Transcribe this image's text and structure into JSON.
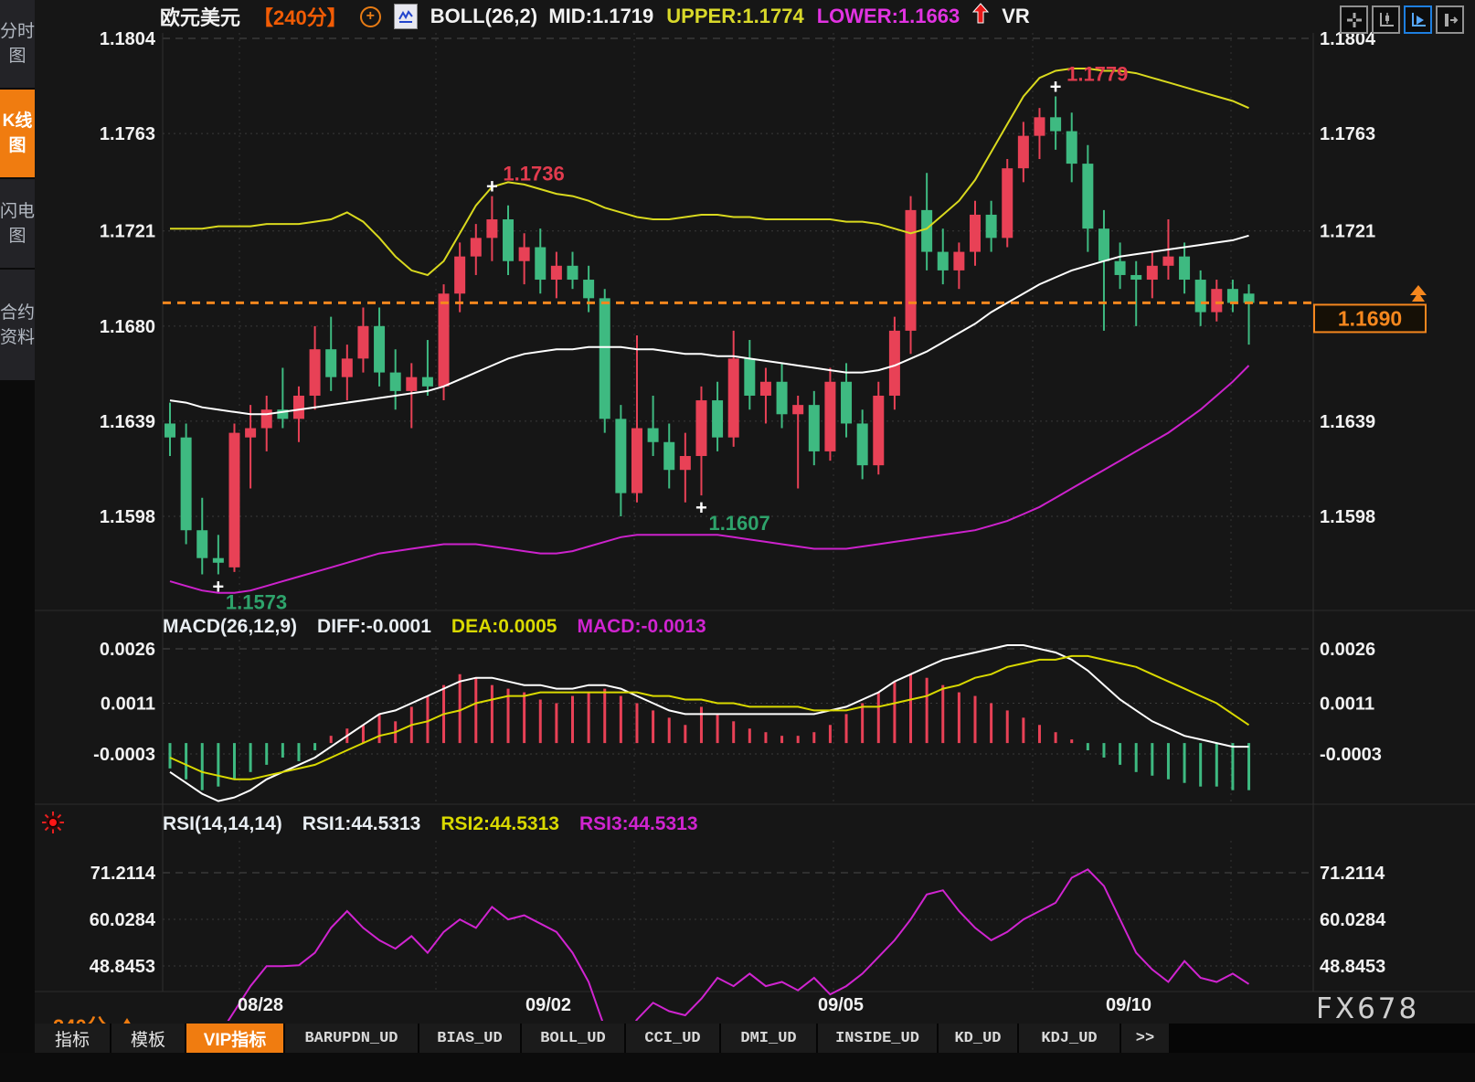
{
  "colors": {
    "up": "#e84156",
    "down": "#3eba81",
    "boll_upper": "#d9d91e",
    "boll_mid": "#ffffff",
    "boll_lower": "#cc22cc",
    "price_line": "#f5871e",
    "accent": "#f07c10",
    "grid": "#3a3a3a",
    "axis_text": "#f2f2f2",
    "ann_red": "#e23b4e",
    "ann_green": "#2ea36b",
    "macd_diff": "#ffffff",
    "macd_dea": "#d9d900",
    "rsi_line": "#d024d0"
  },
  "sidebar": {
    "items": [
      {
        "label": "分时图",
        "active": false
      },
      {
        "label": "K线图",
        "active": true
      },
      {
        "label": "闪电图",
        "active": false
      },
      {
        "label": "合约资料",
        "active": false
      }
    ]
  },
  "header": {
    "symbol": "欧元美元",
    "period": "【240分】",
    "plus_icon": "+",
    "boll_label": "BOLL(26,2)",
    "mid": "MID:1.1719",
    "upper": "UPPER:1.1774",
    "lower": "LOWER:1.1663",
    "vr": "VR"
  },
  "toolbar": {
    "buttons": [
      "pan-crosshair",
      "axis-candle",
      "axis-play",
      "axis-export"
    ],
    "active_index": 2
  },
  "macd_header": {
    "label": "MACD(26,12,9)",
    "diff": "DIFF:-0.0001",
    "dea": "DEA:0.0005",
    "macd": "MACD:-0.0013"
  },
  "rsi_header": {
    "label": "RSI(14,14,14)",
    "rsi1": "RSI1:44.5313",
    "rsi2": "RSI2:44.5313",
    "rsi3": "RSI3:44.5313"
  },
  "footer": {
    "interval": "240分",
    "watermark": "FX678",
    "tabs": [
      "指标",
      "模板",
      "VIP指标",
      "BARUPDN_UD",
      "BIAS_UD",
      "BOLL_UD",
      "CCI_UD",
      "DMI_UD",
      "INSIDE_UD",
      "KD_UD",
      "KDJ_UD",
      ">>"
    ],
    "active_tab": "VIP指标"
  },
  "chart_data": {
    "type": "candlestick",
    "title": "欧元美元 240分",
    "x_labels": [
      "08/28",
      "09/02",
      "09/05",
      "09/10"
    ],
    "price_axis_ticks": [
      1.1804,
      1.1763,
      1.1721,
      1.168,
      1.1639,
      1.1598
    ],
    "macd_axis_ticks": [
      0.0026,
      0.0011,
      -0.0003
    ],
    "rsi_axis_ticks": [
      71.2114,
      60.0284,
      48.8453
    ],
    "current_price": "1.1690",
    "current_price_value": 1.169,
    "candles": [
      [
        1.1638,
        1.1647,
        1.1624,
        1.1632
      ],
      [
        1.1632,
        1.1638,
        1.1586,
        1.1592
      ],
      [
        1.1592,
        1.1606,
        1.1573,
        1.158
      ],
      [
        1.158,
        1.159,
        1.1573,
        1.1578
      ],
      [
        1.1576,
        1.1638,
        1.1574,
        1.1634
      ],
      [
        1.1632,
        1.1646,
        1.161,
        1.1636
      ],
      [
        1.1636,
        1.165,
        1.1626,
        1.1644
      ],
      [
        1.1644,
        1.1662,
        1.1636,
        1.164
      ],
      [
        1.164,
        1.1654,
        1.163,
        1.165
      ],
      [
        1.165,
        1.168,
        1.1644,
        1.167
      ],
      [
        1.167,
        1.1684,
        1.1652,
        1.1658
      ],
      [
        1.1658,
        1.1672,
        1.1648,
        1.1666
      ],
      [
        1.1666,
        1.1688,
        1.166,
        1.168
      ],
      [
        1.168,
        1.1688,
        1.1654,
        1.166
      ],
      [
        1.166,
        1.167,
        1.1644,
        1.1652
      ],
      [
        1.1652,
        1.1664,
        1.1636,
        1.1658
      ],
      [
        1.1658,
        1.1674,
        1.165,
        1.1654
      ],
      [
        1.1654,
        1.1698,
        1.1648,
        1.1694
      ],
      [
        1.1694,
        1.1716,
        1.1686,
        1.171
      ],
      [
        1.171,
        1.1724,
        1.1702,
        1.1718
      ],
      [
        1.1718,
        1.1736,
        1.1708,
        1.1726
      ],
      [
        1.1726,
        1.1732,
        1.1702,
        1.1708
      ],
      [
        1.1708,
        1.172,
        1.1698,
        1.1714
      ],
      [
        1.1714,
        1.1722,
        1.1694,
        1.17
      ],
      [
        1.17,
        1.1712,
        1.1692,
        1.1706
      ],
      [
        1.1706,
        1.1712,
        1.1696,
        1.17
      ],
      [
        1.17,
        1.1706,
        1.1686,
        1.1692
      ],
      [
        1.1692,
        1.1696,
        1.1634,
        1.164
      ],
      [
        1.164,
        1.1646,
        1.1598,
        1.1608
      ],
      [
        1.1608,
        1.1676,
        1.1604,
        1.1636
      ],
      [
        1.1636,
        1.165,
        1.1624,
        1.163
      ],
      [
        1.163,
        1.1638,
        1.161,
        1.1618
      ],
      [
        1.1618,
        1.1634,
        1.1604,
        1.1624
      ],
      [
        1.1624,
        1.1654,
        1.1607,
        1.1648
      ],
      [
        1.1648,
        1.1656,
        1.1626,
        1.1632
      ],
      [
        1.1632,
        1.1678,
        1.1628,
        1.1666
      ],
      [
        1.1666,
        1.1674,
        1.1644,
        1.165
      ],
      [
        1.165,
        1.1662,
        1.1638,
        1.1656
      ],
      [
        1.1656,
        1.1664,
        1.1636,
        1.1642
      ],
      [
        1.1642,
        1.165,
        1.161,
        1.1646
      ],
      [
        1.1646,
        1.1652,
        1.162,
        1.1626
      ],
      [
        1.1626,
        1.1662,
        1.1622,
        1.1656
      ],
      [
        1.1656,
        1.1664,
        1.1632,
        1.1638
      ],
      [
        1.1638,
        1.1644,
        1.1614,
        1.162
      ],
      [
        1.162,
        1.1656,
        1.1616,
        1.165
      ],
      [
        1.165,
        1.1684,
        1.1644,
        1.1678
      ],
      [
        1.1678,
        1.1736,
        1.1668,
        1.173
      ],
      [
        1.173,
        1.1746,
        1.1704,
        1.1712
      ],
      [
        1.1712,
        1.1722,
        1.1698,
        1.1704
      ],
      [
        1.1704,
        1.1716,
        1.1696,
        1.1712
      ],
      [
        1.1712,
        1.1734,
        1.1706,
        1.1728
      ],
      [
        1.1728,
        1.1734,
        1.1712,
        1.1718
      ],
      [
        1.1718,
        1.1752,
        1.1714,
        1.1748
      ],
      [
        1.1748,
        1.1768,
        1.1742,
        1.1762
      ],
      [
        1.1762,
        1.1774,
        1.1752,
        1.177
      ],
      [
        1.177,
        1.1779,
        1.1756,
        1.1764
      ],
      [
        1.1764,
        1.1772,
        1.1742,
        1.175
      ],
      [
        1.175,
        1.1758,
        1.1712,
        1.1722
      ],
      [
        1.1722,
        1.173,
        1.1678,
        1.1708
      ],
      [
        1.1708,
        1.1716,
        1.1696,
        1.1702
      ],
      [
        1.1702,
        1.1708,
        1.168,
        1.17
      ],
      [
        1.17,
        1.1712,
        1.1692,
        1.1706
      ],
      [
        1.1706,
        1.1726,
        1.17,
        1.171
      ],
      [
        1.171,
        1.1716,
        1.1694,
        1.17
      ],
      [
        1.17,
        1.1704,
        1.168,
        1.1686
      ],
      [
        1.1686,
        1.17,
        1.1682,
        1.1696
      ],
      [
        1.1696,
        1.17,
        1.1686,
        1.169
      ],
      [
        1.1694,
        1.1698,
        1.1672,
        1.169
      ]
    ],
    "boll": {
      "upper": [
        1.1722,
        1.1722,
        1.1722,
        1.1723,
        1.1723,
        1.1723,
        1.1724,
        1.1724,
        1.1724,
        1.1725,
        1.1726,
        1.1729,
        1.1725,
        1.1718,
        1.171,
        1.1704,
        1.1702,
        1.1708,
        1.172,
        1.1732,
        1.174,
        1.1742,
        1.1741,
        1.1739,
        1.1737,
        1.1736,
        1.1734,
        1.1731,
        1.1729,
        1.1727,
        1.1726,
        1.1726,
        1.1727,
        1.1728,
        1.1728,
        1.1727,
        1.1727,
        1.1726,
        1.1726,
        1.1726,
        1.1726,
        1.1726,
        1.1725,
        1.1725,
        1.1724,
        1.1722,
        1.172,
        1.1722,
        1.1728,
        1.1734,
        1.1743,
        1.1755,
        1.1767,
        1.1779,
        1.1787,
        1.179,
        1.1791,
        1.1791,
        1.179,
        1.179,
        1.1789,
        1.1787,
        1.1785,
        1.1783,
        1.1781,
        1.1779,
        1.1777,
        1.1774
      ],
      "mid": [
        1.1648,
        1.1647,
        1.1645,
        1.1644,
        1.1643,
        1.1642,
        1.1642,
        1.1643,
        1.1644,
        1.1645,
        1.1646,
        1.1647,
        1.1648,
        1.1649,
        1.165,
        1.1651,
        1.1652,
        1.1654,
        1.1657,
        1.166,
        1.1663,
        1.1666,
        1.1668,
        1.1669,
        1.167,
        1.167,
        1.1671,
        1.1671,
        1.1671,
        1.167,
        1.167,
        1.1669,
        1.1668,
        1.1668,
        1.1667,
        1.1667,
        1.1666,
        1.1665,
        1.1664,
        1.1663,
        1.1662,
        1.1661,
        1.166,
        1.166,
        1.1661,
        1.1663,
        1.1666,
        1.1669,
        1.1673,
        1.1677,
        1.1681,
        1.1686,
        1.169,
        1.1694,
        1.1698,
        1.1701,
        1.1704,
        1.1706,
        1.1708,
        1.171,
        1.1711,
        1.1712,
        1.1713,
        1.1714,
        1.1715,
        1.1716,
        1.1717,
        1.1719
      ],
      "lower": [
        1.157,
        1.1568,
        1.1566,
        1.1565,
        1.1565,
        1.1566,
        1.1568,
        1.157,
        1.1572,
        1.1574,
        1.1576,
        1.1578,
        1.158,
        1.1582,
        1.1583,
        1.1584,
        1.1585,
        1.1586,
        1.1586,
        1.1586,
        1.1585,
        1.1584,
        1.1583,
        1.1582,
        1.1582,
        1.1583,
        1.1585,
        1.1587,
        1.1589,
        1.159,
        1.159,
        1.159,
        1.159,
        1.159,
        1.159,
        1.1589,
        1.1588,
        1.1587,
        1.1586,
        1.1585,
        1.1584,
        1.1584,
        1.1584,
        1.1585,
        1.1586,
        1.1587,
        1.1588,
        1.1589,
        1.159,
        1.1591,
        1.1592,
        1.1594,
        1.1596,
        1.1599,
        1.1602,
        1.1606,
        1.161,
        1.1614,
        1.1618,
        1.1622,
        1.1626,
        1.163,
        1.1634,
        1.1639,
        1.1644,
        1.165,
        1.1656,
        1.1663
      ]
    },
    "macd": {
      "hist": [
        -0.0007,
        -0.001,
        -0.0013,
        -0.0012,
        -0.001,
        -0.0008,
        -0.0006,
        -0.0004,
        -0.0005,
        -0.0002,
        0.0002,
        0.0004,
        0.0005,
        0.0008,
        0.0006,
        0.001,
        0.0013,
        0.0016,
        0.0019,
        0.0018,
        0.0016,
        0.0015,
        0.0014,
        0.0012,
        0.0011,
        0.0013,
        0.0014,
        0.0015,
        0.0013,
        0.0011,
        0.0009,
        0.0007,
        0.0005,
        0.001,
        0.0008,
        0.0006,
        0.0004,
        0.0003,
        0.0002,
        0.0002,
        0.0003,
        0.0005,
        0.0008,
        0.0011,
        0.0014,
        0.0017,
        0.0019,
        0.0018,
        0.0016,
        0.0014,
        0.0013,
        0.0011,
        0.0009,
        0.0007,
        0.0005,
        0.0003,
        0.0001,
        -0.0002,
        -0.0004,
        -0.0006,
        -0.0008,
        -0.0009,
        -0.001,
        -0.0011,
        -0.0012,
        -0.0012,
        -0.0013,
        -0.0013
      ],
      "diff": [
        -0.0008,
        -0.0011,
        -0.0014,
        -0.0016,
        -0.0015,
        -0.0013,
        -0.001,
        -0.0008,
        -0.0006,
        -0.0004,
        -0.0001,
        0.0002,
        0.0005,
        0.0008,
        0.0009,
        0.0011,
        0.0013,
        0.0015,
        0.0017,
        0.0018,
        0.0018,
        0.0017,
        0.0016,
        0.0016,
        0.0015,
        0.0015,
        0.0016,
        0.0016,
        0.0015,
        0.0013,
        0.0011,
        0.0009,
        0.0008,
        0.0008,
        0.0008,
        0.0008,
        0.0008,
        0.0008,
        0.0008,
        0.0008,
        0.0008,
        0.0009,
        0.001,
        0.0012,
        0.0014,
        0.0017,
        0.0019,
        0.0021,
        0.0023,
        0.0024,
        0.0025,
        0.0026,
        0.0027,
        0.0027,
        0.0026,
        0.0025,
        0.0023,
        0.002,
        0.0016,
        0.0012,
        0.0009,
        0.0006,
        0.0004,
        0.0002,
        0.0001,
        0.0,
        -0.0001,
        -0.0001
      ],
      "dea": [
        -0.0004,
        -0.0006,
        -0.0008,
        -0.0009,
        -0.001,
        -0.001,
        -0.0009,
        -0.0008,
        -0.0007,
        -0.0006,
        -0.0004,
        -0.0002,
        0.0,
        0.0002,
        0.0003,
        0.0005,
        0.0006,
        0.0008,
        0.0009,
        0.0011,
        0.0012,
        0.0013,
        0.0013,
        0.0014,
        0.0014,
        0.0014,
        0.0014,
        0.0014,
        0.0014,
        0.0014,
        0.0013,
        0.0013,
        0.0012,
        0.0012,
        0.0011,
        0.0011,
        0.001,
        0.001,
        0.001,
        0.001,
        0.0009,
        0.0009,
        0.0009,
        0.001,
        0.001,
        0.0011,
        0.0012,
        0.0013,
        0.0015,
        0.0016,
        0.0018,
        0.0019,
        0.0021,
        0.0022,
        0.0023,
        0.0023,
        0.0024,
        0.0024,
        0.0023,
        0.0022,
        0.0021,
        0.0019,
        0.0017,
        0.0015,
        0.0013,
        0.0011,
        0.0008,
        0.0005
      ]
    },
    "rsi": [
      33,
      30,
      28,
      32,
      38,
      44,
      48.8,
      48.8,
      49,
      52,
      58,
      62,
      58,
      55,
      53,
      56,
      52,
      57,
      60,
      58,
      63,
      60,
      61,
      59,
      57,
      52,
      45,
      34,
      30,
      36,
      40,
      38,
      37,
      41,
      46,
      44,
      47,
      44,
      45,
      43,
      46,
      42,
      44,
      47,
      51,
      55,
      60,
      66,
      67,
      62,
      58,
      55,
      57,
      60,
      62,
      64,
      70,
      72,
      68,
      60,
      52,
      48,
      45,
      50,
      46,
      45,
      47,
      44.5
    ],
    "annotations": [
      {
        "text": "1.1736",
        "kind": "high",
        "idx": 20
      },
      {
        "text": "1.1779",
        "kind": "high",
        "idx": 55
      },
      {
        "text": "1.1607",
        "kind": "low",
        "idx": 33
      },
      {
        "text": "1.1573",
        "kind": "low",
        "idx": 3
      }
    ]
  }
}
